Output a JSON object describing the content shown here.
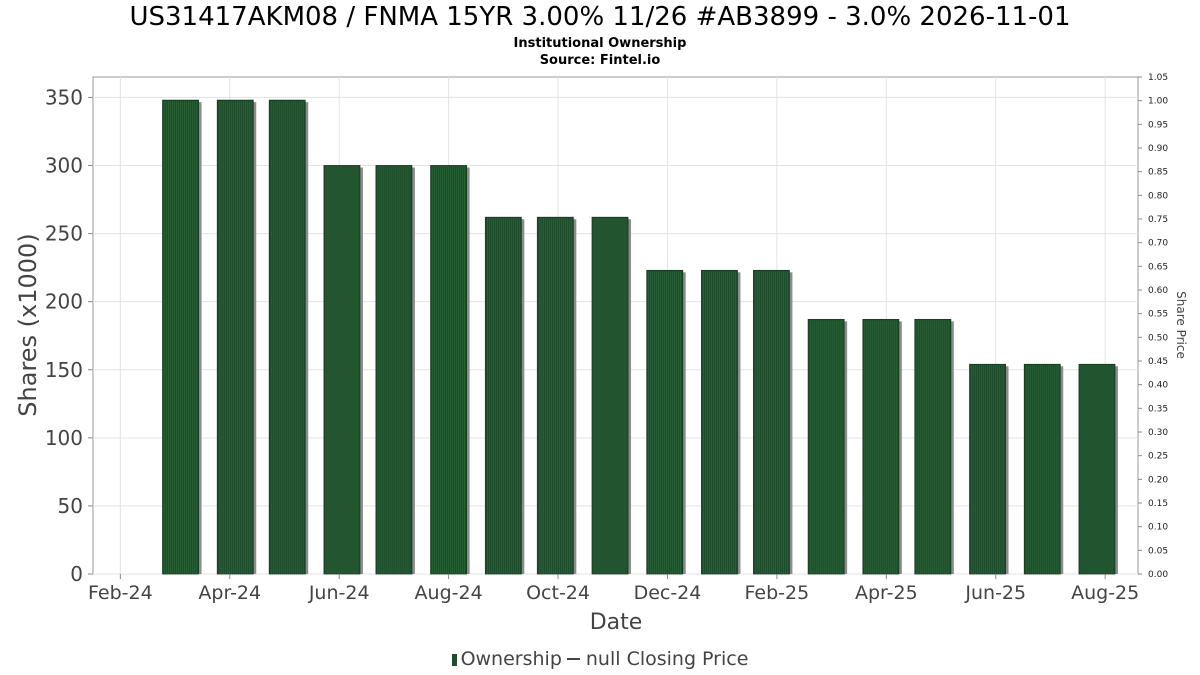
{
  "chart_data": {
    "type": "bar",
    "title": "US31417AKM08 / FNMA 15YR 3.00% 11/26 #AB3899 - 3.0% 2026-11-01",
    "subtitle_lines": [
      "Institutional Ownership",
      "Source: Fintel.io"
    ],
    "xlabel": "Date",
    "ylabel": "Shares (x1000)",
    "y2label": "Share Price",
    "ylim": [
      0,
      365
    ],
    "y2lim": [
      0,
      1.05
    ],
    "yticks": [
      0,
      50,
      100,
      150,
      200,
      250,
      300,
      350
    ],
    "y2ticks": [
      "0.00",
      "0.05",
      "0.10",
      "0.15",
      "0.20",
      "0.25",
      "0.30",
      "0.35",
      "0.40",
      "0.45",
      "0.50",
      "0.55",
      "0.60",
      "0.65",
      "0.70",
      "0.75",
      "0.80",
      "0.85",
      "0.90",
      "0.95",
      "1.00",
      "1.05"
    ],
    "xticks": [
      "Feb-24",
      "Apr-24",
      "Jun-24",
      "Aug-24",
      "Oct-24",
      "Dec-24",
      "Feb-25",
      "Apr-25",
      "Jun-25",
      "Aug-25"
    ],
    "xlim_months": [
      -0.5,
      18.6
    ],
    "series": [
      {
        "name": "Ownership",
        "color": "#1e4d2b",
        "points": [
          {
            "month": 1.1,
            "value": 348
          },
          {
            "month": 2.1,
            "value": 348
          },
          {
            "month": 3.05,
            "value": 348
          },
          {
            "month": 4.05,
            "value": 300
          },
          {
            "month": 5.0,
            "value": 300
          },
          {
            "month": 6.0,
            "value": 300
          },
          {
            "month": 7.0,
            "value": 262
          },
          {
            "month": 7.95,
            "value": 262
          },
          {
            "month": 8.95,
            "value": 262
          },
          {
            "month": 9.95,
            "value": 223
          },
          {
            "month": 10.95,
            "value": 223
          },
          {
            "month": 11.9,
            "value": 223
          },
          {
            "month": 12.9,
            "value": 187
          },
          {
            "month": 13.9,
            "value": 187
          },
          {
            "month": 14.85,
            "value": 187
          },
          {
            "month": 15.85,
            "value": 154
          },
          {
            "month": 16.85,
            "value": 154
          },
          {
            "month": 17.85,
            "value": 154
          }
        ]
      }
    ],
    "legend": [
      "Ownership",
      "null Closing Price"
    ],
    "grid": true,
    "legend_position": "bottom"
  }
}
